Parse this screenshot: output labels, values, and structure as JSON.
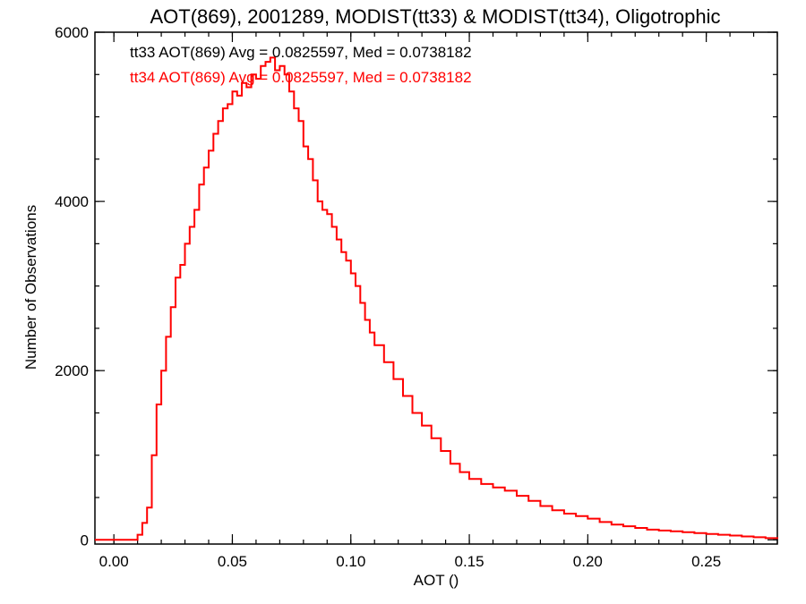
{
  "chart_data": {
    "type": "line",
    "step": true,
    "title": "AOT(869), 2001289, MODIST(tt33) & MODIST(tt34), Oligotrophic",
    "xlabel": "AOT ()",
    "ylabel": "Number of Observations",
    "xlim": [
      -0.008,
      0.28
    ],
    "ylim": [
      -50,
      6000
    ],
    "xticks": [
      0.0,
      0.05,
      0.1,
      0.15,
      0.2,
      0.25
    ],
    "xtick_labels": [
      "0.00",
      "0.05",
      "0.10",
      "0.15",
      "0.20",
      "0.25"
    ],
    "yticks": [
      0,
      2000,
      4000,
      6000
    ],
    "ytick_labels": [
      "0",
      "2000",
      "4000",
      "6000"
    ],
    "legend_placement": "top-left",
    "annotations": [
      {
        "text": "tt33 AOT(869) Avg = 0.0825597, Med = 0.0738182",
        "color": "#000000"
      },
      {
        "text": "tt34 AOT(869) Avg = 0.0825597, Med = 0.0738182",
        "color": "#ff0000"
      }
    ],
    "series": [
      {
        "name": "tt34",
        "color": "#ff0000",
        "x": [
          -0.008,
          0.0,
          0.002,
          0.004,
          0.006,
          0.008,
          0.01,
          0.012,
          0.014,
          0.016,
          0.018,
          0.02,
          0.022,
          0.024,
          0.026,
          0.028,
          0.03,
          0.032,
          0.034,
          0.036,
          0.038,
          0.04,
          0.042,
          0.044,
          0.046,
          0.048,
          0.05,
          0.052,
          0.054,
          0.056,
          0.058,
          0.06,
          0.062,
          0.064,
          0.066,
          0.068,
          0.07,
          0.072,
          0.074,
          0.076,
          0.078,
          0.08,
          0.082,
          0.084,
          0.086,
          0.088,
          0.09,
          0.092,
          0.094,
          0.096,
          0.098,
          0.1,
          0.102,
          0.104,
          0.106,
          0.108,
          0.11,
          0.114,
          0.118,
          0.122,
          0.126,
          0.13,
          0.134,
          0.138,
          0.142,
          0.146,
          0.15,
          0.155,
          0.16,
          0.165,
          0.17,
          0.175,
          0.18,
          0.185,
          0.19,
          0.195,
          0.2,
          0.205,
          0.21,
          0.215,
          0.22,
          0.225,
          0.23,
          0.235,
          0.24,
          0.245,
          0.25,
          0.255,
          0.26,
          0.265,
          0.27,
          0.275,
          0.28
        ],
        "y": [
          0,
          0,
          0,
          0,
          0,
          0,
          60,
          200,
          380,
          1000,
          1600,
          2000,
          2400,
          2750,
          3100,
          3250,
          3500,
          3700,
          3900,
          4200,
          4400,
          4600,
          4800,
          4950,
          5100,
          5150,
          5300,
          5250,
          5400,
          5350,
          5500,
          5450,
          5600,
          5650,
          5700,
          5550,
          5600,
          5500,
          5300,
          5100,
          4950,
          4650,
          4500,
          4250,
          4000,
          3900,
          3850,
          3700,
          3550,
          3400,
          3300,
          3150,
          3000,
          2800,
          2600,
          2450,
          2300,
          2100,
          1900,
          1700,
          1500,
          1350,
          1200,
          1050,
          900,
          800,
          720,
          660,
          620,
          580,
          520,
          460,
          400,
          350,
          310,
          280,
          250,
          210,
          180,
          160,
          140,
          120,
          110,
          100,
          90,
          80,
          70,
          60,
          50,
          40,
          30,
          20,
          10
        ]
      }
    ]
  }
}
